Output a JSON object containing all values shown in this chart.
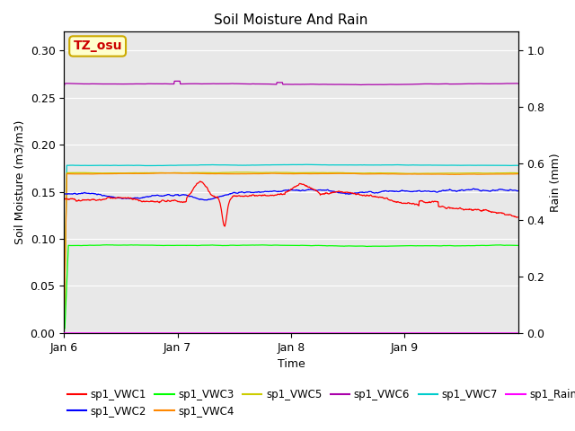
{
  "title": "Soil Moisture And Rain",
  "xlabel": "Time",
  "ylabel_left": "Soil Moisture (m3/m3)",
  "ylabel_right": "Rain (mm)",
  "ylim_left": [
    0.0,
    0.32
  ],
  "ylim_right": [
    0.0,
    1.0667
  ],
  "fig_bg_color": "#ffffff",
  "plot_bg_color": "#e8e8e8",
  "xtick_labels": [
    "Jan 6",
    "Jan 7",
    "Jan 8",
    "Jan 9"
  ],
  "xtick_positions": [
    0,
    288,
    576,
    864
  ],
  "n_points": 1152,
  "annotation_text": "TZ_osu",
  "annotation_bg": "#ffffcc",
  "annotation_border": "#ccaa00",
  "annotation_text_color": "#cc0000",
  "colors": {
    "vwc1": "#ff0000",
    "vwc2": "#0000ff",
    "vwc3": "#00ff00",
    "vwc4": "#ff8800",
    "vwc5": "#cccc00",
    "vwc6": "#aa00aa",
    "vwc7": "#00cccc",
    "rain": "#ff00ff"
  }
}
